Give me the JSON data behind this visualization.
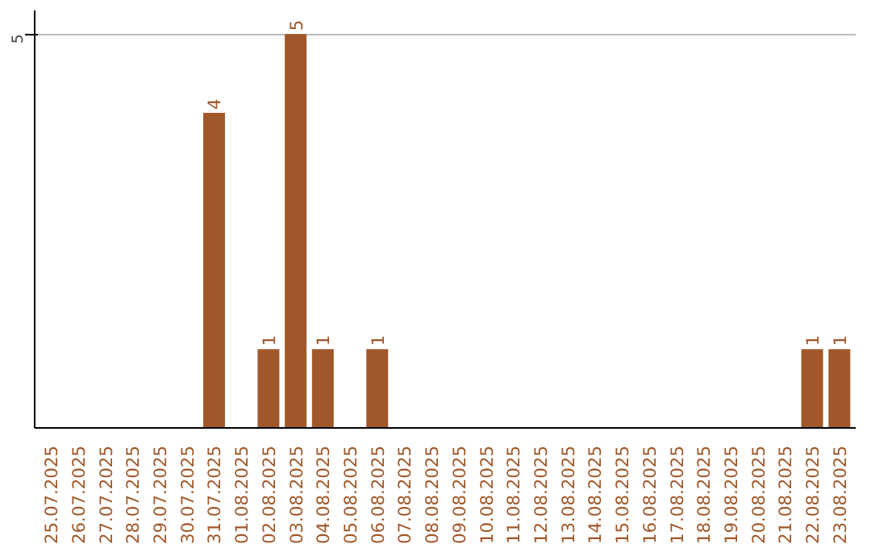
{
  "chart_data": {
    "type": "bar",
    "categories": [
      "25.07.2025",
      "26.07.2025",
      "27.07.2025",
      "28.07.2025",
      "29.07.2025",
      "30.07.2025",
      "31.07.2025",
      "01.08.2025",
      "02.08.2025",
      "03.08.2025",
      "04.08.2025",
      "05.08.2025",
      "06.08.2025",
      "07.08.2025",
      "08.08.2025",
      "09.08.2025",
      "10.08.2025",
      "11.08.2025",
      "12.08.2025",
      "13.08.2025",
      "14.08.2025",
      "15.08.2025",
      "16.08.2025",
      "17.08.2025",
      "18.08.2025",
      "19.08.2025",
      "20.08.2025",
      "21.08.2025",
      "22.08.2025",
      "23.08.2025"
    ],
    "values": [
      0,
      0,
      0,
      0,
      0,
      0,
      4,
      0,
      1,
      5,
      1,
      0,
      1,
      0,
      0,
      0,
      0,
      0,
      0,
      0,
      0,
      0,
      0,
      0,
      0,
      0,
      0,
      0,
      1,
      1
    ],
    "value_labels": [
      null,
      null,
      null,
      null,
      null,
      null,
      "4",
      null,
      "1",
      "5",
      "1",
      null,
      "1",
      null,
      null,
      null,
      null,
      null,
      null,
      null,
      null,
      null,
      null,
      null,
      null,
      null,
      null,
      null,
      "1",
      "1"
    ],
    "color": "#a0582a",
    "ylim": [
      0,
      5.3
    ],
    "yticks": [
      5
    ],
    "grid": "y"
  }
}
